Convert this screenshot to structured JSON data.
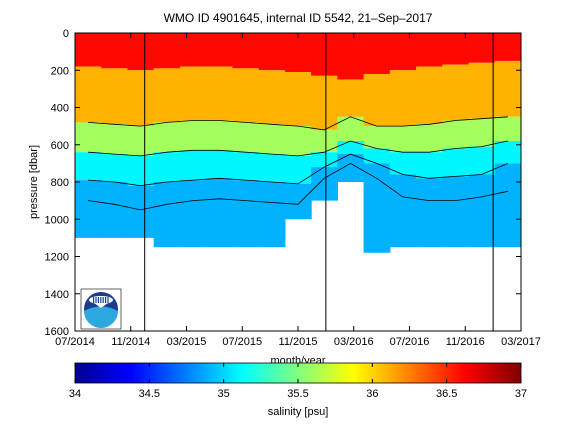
{
  "chart_data": {
    "type": "heatmap",
    "title": "WMO ID 4901645, internal ID 5542, 21–Sep–2017",
    "xlabel": "month/year",
    "ylabel": "pressure [dbar]",
    "x_ticks": [
      "07/2014",
      "11/2014",
      "03/2015",
      "07/2015",
      "11/2015",
      "03/2016",
      "07/2016",
      "11/2016",
      "03/2017"
    ],
    "y_ticks": [
      0,
      200,
      400,
      600,
      800,
      1000,
      1200,
      1400,
      1600
    ],
    "ylim": [
      1600,
      0
    ],
    "y_reversed": true,
    "colorbar": {
      "label": "salinity [psu]",
      "range": [
        34,
        37
      ],
      "ticks": [
        "34",
        "34.5",
        "35",
        "35.5",
        "36",
        "36.5",
        "37"
      ]
    },
    "vertical_markers": [
      "12/2014",
      "01/2016",
      "01/2017"
    ],
    "profile_columns": [
      {
        "x": "07/2014",
        "z": [
          36.6,
          36.1,
          35.6,
          35.1,
          34.9
        ],
        "depth_max": 1100
      },
      {
        "x": "09/2014",
        "z": [
          36.6,
          36.1,
          35.6,
          35.1,
          34.9
        ],
        "depth_max": 1100
      },
      {
        "x": "11/2014",
        "z": [
          36.6,
          36.1,
          35.6,
          35.1,
          34.9
        ],
        "depth_max": 1100
      },
      {
        "x": "01/2015",
        "z": [
          36.6,
          36.1,
          35.6,
          35.1,
          34.9
        ],
        "depth_max": 1150
      },
      {
        "x": "03/2015",
        "z": [
          36.6,
          36.1,
          35.6,
          35.1,
          34.9
        ],
        "depth_max": 1150
      },
      {
        "x": "05/2015",
        "z": [
          36.6,
          36.1,
          35.6,
          35.1,
          34.9
        ],
        "depth_max": 1150
      },
      {
        "x": "07/2015",
        "z": [
          36.6,
          36.1,
          35.6,
          35.1,
          34.9
        ],
        "depth_max": 1150
      },
      {
        "x": "09/2015",
        "z": [
          36.6,
          36.1,
          35.6,
          35.1,
          34.9
        ],
        "depth_max": 1150
      },
      {
        "x": "11/2015",
        "z": [
          36.6,
          36.1,
          35.6,
          35.1,
          34.9
        ],
        "depth_max": 1000
      },
      {
        "x": "01/2016",
        "z": [
          36.6,
          36.1,
          35.6,
          35.1,
          34.9
        ],
        "depth_max": 900
      },
      {
        "x": "03/2016",
        "z": [
          36.6,
          36.1,
          35.6,
          35.1,
          34.9
        ],
        "depth_max": 800
      },
      {
        "x": "05/2016",
        "z": [
          36.6,
          36.1,
          35.6,
          35.1,
          34.9
        ],
        "depth_max": 1180
      },
      {
        "x": "07/2016",
        "z": [
          36.6,
          36.1,
          35.6,
          35.1,
          34.9
        ],
        "depth_max": 1150
      },
      {
        "x": "09/2016",
        "z": [
          36.6,
          36.1,
          35.6,
          35.1,
          34.9
        ],
        "depth_max": 1150
      },
      {
        "x": "11/2016",
        "z": [
          36.6,
          36.1,
          35.6,
          35.1,
          34.9
        ],
        "depth_max": 1150
      },
      {
        "x": "01/2017",
        "z": [
          36.6,
          36.1,
          35.6,
          35.1,
          34.9
        ],
        "depth_max": 1150
      },
      {
        "x": "03/2017",
        "z": [
          36.6,
          36.1,
          35.6,
          35.1,
          34.9
        ],
        "depth_max": 1150
      }
    ],
    "band_depths_dbar": [
      [
        180,
        480,
        640,
        790,
        900
      ],
      [
        190,
        490,
        650,
        800,
        920
      ],
      [
        200,
        500,
        660,
        820,
        950
      ],
      [
        190,
        480,
        640,
        800,
        920
      ],
      [
        180,
        470,
        630,
        790,
        900
      ],
      [
        180,
        470,
        630,
        780,
        890
      ],
      [
        190,
        480,
        640,
        790,
        900
      ],
      [
        200,
        490,
        650,
        800,
        910
      ],
      [
        210,
        500,
        660,
        810,
        920
      ],
      [
        230,
        520,
        640,
        720,
        780
      ],
      [
        250,
        450,
        580,
        650,
        700
      ],
      [
        220,
        500,
        620,
        700,
        780
      ],
      [
        200,
        500,
        640,
        760,
        880
      ],
      [
        180,
        490,
        640,
        780,
        900
      ],
      [
        170,
        470,
        620,
        770,
        900
      ],
      [
        160,
        460,
        610,
        760,
        880
      ],
      [
        150,
        450,
        580,
        700,
        850
      ]
    ],
    "grid": false,
    "legend": "none"
  },
  "logo": {
    "name": "noaa-logo",
    "text": "NOAA"
  }
}
